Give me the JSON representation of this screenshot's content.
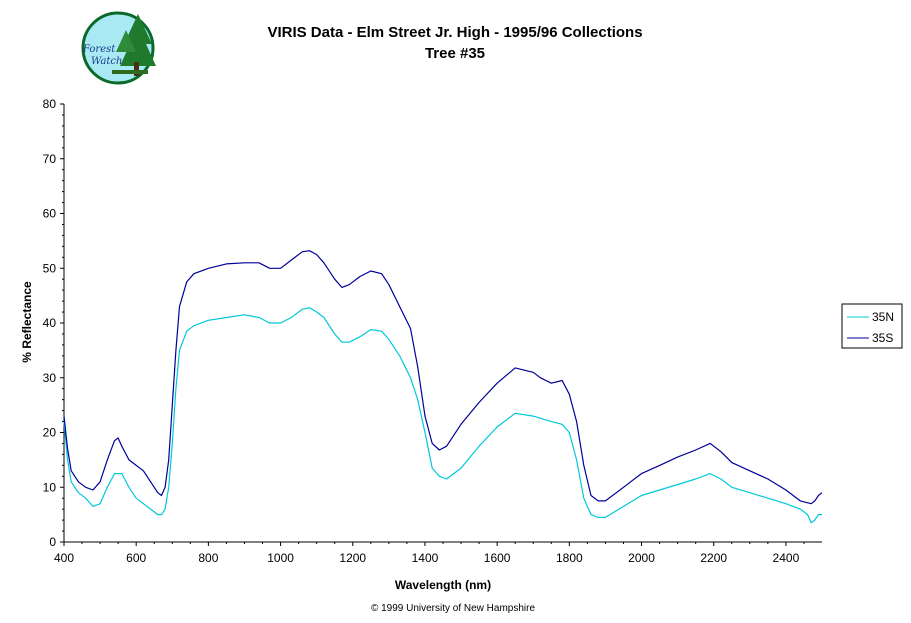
{
  "logo": {
    "line1": "Forest",
    "line2": "Watch"
  },
  "footer": "© 1999 University of New Hampshire",
  "colors": {
    "35N": "#00c8d8",
    "35S": "#000099",
    "axis": "#000000"
  },
  "chart_data": {
    "type": "line",
    "title": "VIRIS Data - Elm Street Jr. High - 1995/96 Collections",
    "subtitle": "Tree #35",
    "xlabel": "Wavelength (nm)",
    "ylabel": "% Reflectance",
    "xlim": [
      400,
      2500
    ],
    "ylim": [
      0,
      80
    ],
    "xticks": [
      400,
      600,
      800,
      1000,
      1200,
      1400,
      1600,
      1800,
      2000,
      2200,
      2400
    ],
    "yticks": [
      0,
      10,
      20,
      30,
      40,
      50,
      60,
      70,
      80
    ],
    "grid": false,
    "legend_position": "right",
    "series": [
      {
        "name": "35N",
        "color": "#00c8d8",
        "points": [
          [
            400,
            22
          ],
          [
            410,
            15
          ],
          [
            420,
            11
          ],
          [
            440,
            9
          ],
          [
            460,
            8
          ],
          [
            480,
            6.5
          ],
          [
            500,
            7
          ],
          [
            520,
            10
          ],
          [
            540,
            12.5
          ],
          [
            560,
            12.5
          ],
          [
            580,
            10
          ],
          [
            600,
            8
          ],
          [
            620,
            7
          ],
          [
            640,
            6
          ],
          [
            660,
            5
          ],
          [
            670,
            5
          ],
          [
            680,
            6
          ],
          [
            690,
            10
          ],
          [
            700,
            18
          ],
          [
            710,
            28
          ],
          [
            720,
            35
          ],
          [
            740,
            38.5
          ],
          [
            760,
            39.5
          ],
          [
            800,
            40.5
          ],
          [
            850,
            41
          ],
          [
            900,
            41.5
          ],
          [
            940,
            41
          ],
          [
            970,
            40
          ],
          [
            1000,
            40
          ],
          [
            1030,
            41
          ],
          [
            1060,
            42.5
          ],
          [
            1080,
            42.8
          ],
          [
            1100,
            42
          ],
          [
            1120,
            41
          ],
          [
            1150,
            38
          ],
          [
            1170,
            36.5
          ],
          [
            1190,
            36.5
          ],
          [
            1220,
            37.5
          ],
          [
            1250,
            38.8
          ],
          [
            1280,
            38.5
          ],
          [
            1300,
            37
          ],
          [
            1330,
            34
          ],
          [
            1360,
            30
          ],
          [
            1380,
            26
          ],
          [
            1400,
            20
          ],
          [
            1420,
            13.5
          ],
          [
            1440,
            12
          ],
          [
            1460,
            11.5
          ],
          [
            1500,
            13.5
          ],
          [
            1550,
            17.5
          ],
          [
            1600,
            21
          ],
          [
            1650,
            23.5
          ],
          [
            1700,
            23
          ],
          [
            1750,
            22
          ],
          [
            1780,
            21.5
          ],
          [
            1800,
            20
          ],
          [
            1820,
            15
          ],
          [
            1840,
            8
          ],
          [
            1860,
            5
          ],
          [
            1880,
            4.5
          ],
          [
            1900,
            4.5
          ],
          [
            1950,
            6.5
          ],
          [
            2000,
            8.5
          ],
          [
            2050,
            9.5
          ],
          [
            2100,
            10.5
          ],
          [
            2150,
            11.5
          ],
          [
            2190,
            12.5
          ],
          [
            2220,
            11.5
          ],
          [
            2250,
            10
          ],
          [
            2300,
            9
          ],
          [
            2350,
            8
          ],
          [
            2400,
            7
          ],
          [
            2440,
            6
          ],
          [
            2460,
            5
          ],
          [
            2470,
            3.5
          ],
          [
            2480,
            4
          ],
          [
            2490,
            5
          ],
          [
            2500,
            5
          ]
        ]
      },
      {
        "name": "35S",
        "color": "#000099",
        "points": [
          [
            400,
            23
          ],
          [
            410,
            17
          ],
          [
            420,
            13
          ],
          [
            440,
            11
          ],
          [
            460,
            10
          ],
          [
            480,
            9.5
          ],
          [
            500,
            11
          ],
          [
            520,
            15
          ],
          [
            540,
            18.5
          ],
          [
            550,
            19
          ],
          [
            560,
            17.5
          ],
          [
            580,
            15
          ],
          [
            600,
            14
          ],
          [
            620,
            13
          ],
          [
            640,
            11
          ],
          [
            660,
            9
          ],
          [
            670,
            8.5
          ],
          [
            680,
            10
          ],
          [
            690,
            15
          ],
          [
            700,
            25
          ],
          [
            710,
            35
          ],
          [
            720,
            43
          ],
          [
            740,
            47.5
          ],
          [
            760,
            49
          ],
          [
            800,
            50
          ],
          [
            850,
            50.8
          ],
          [
            900,
            51
          ],
          [
            940,
            51
          ],
          [
            970,
            50
          ],
          [
            1000,
            50
          ],
          [
            1030,
            51.5
          ],
          [
            1060,
            53
          ],
          [
            1080,
            53.2
          ],
          [
            1100,
            52.5
          ],
          [
            1120,
            51
          ],
          [
            1150,
            48
          ],
          [
            1170,
            46.5
          ],
          [
            1190,
            47
          ],
          [
            1220,
            48.5
          ],
          [
            1250,
            49.5
          ],
          [
            1280,
            49
          ],
          [
            1300,
            47
          ],
          [
            1330,
            43
          ],
          [
            1360,
            39
          ],
          [
            1380,
            32
          ],
          [
            1400,
            23
          ],
          [
            1420,
            18
          ],
          [
            1440,
            16.8
          ],
          [
            1460,
            17.5
          ],
          [
            1500,
            21.5
          ],
          [
            1550,
            25.5
          ],
          [
            1600,
            29
          ],
          [
            1650,
            31.8
          ],
          [
            1700,
            31
          ],
          [
            1720,
            30
          ],
          [
            1750,
            29
          ],
          [
            1780,
            29.5
          ],
          [
            1800,
            27
          ],
          [
            1820,
            22
          ],
          [
            1840,
            14
          ],
          [
            1860,
            8.5
          ],
          [
            1880,
            7.5
          ],
          [
            1900,
            7.5
          ],
          [
            1950,
            10
          ],
          [
            2000,
            12.5
          ],
          [
            2050,
            14
          ],
          [
            2100,
            15.5
          ],
          [
            2150,
            16.8
          ],
          [
            2190,
            18
          ],
          [
            2220,
            16.5
          ],
          [
            2250,
            14.5
          ],
          [
            2300,
            13
          ],
          [
            2350,
            11.5
          ],
          [
            2400,
            9.5
          ],
          [
            2440,
            7.5
          ],
          [
            2470,
            7
          ],
          [
            2480,
            7.5
          ],
          [
            2490,
            8.5
          ],
          [
            2500,
            9
          ]
        ]
      }
    ]
  }
}
